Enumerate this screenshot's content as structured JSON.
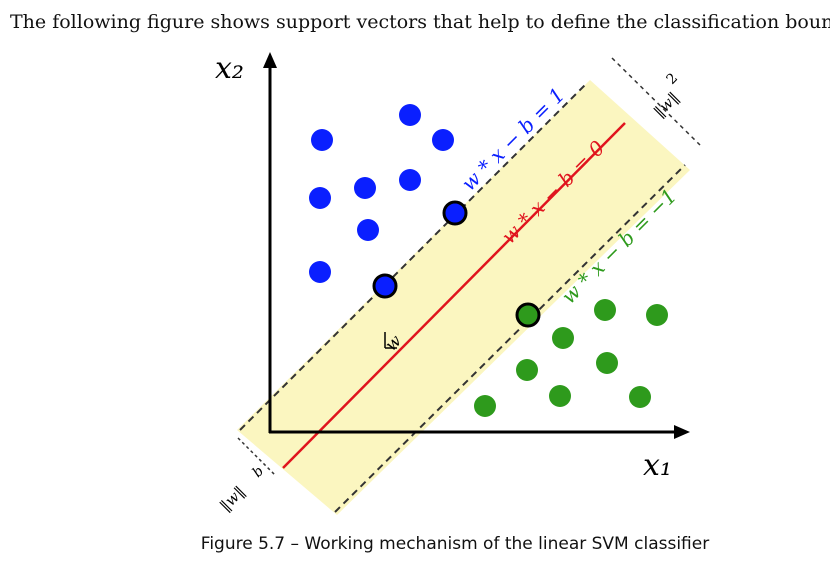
{
  "intro": "The following figure shows support vectors that help to define the classification boundary:",
  "figure": {
    "x1_label": "x₁",
    "x2_label": "x₂",
    "upper_margin_label": "w * x − b = 1",
    "boundary_label": "w * x − b = 0",
    "lower_margin_label": "w * x − b = −1",
    "normal_label": "w",
    "margin_width": {
      "numerator": "2",
      "denominator": "‖w‖"
    },
    "offset": {
      "numerator": "b",
      "denominator": "‖w‖"
    }
  },
  "caption": "Figure 5.7 – Working mechanism of the linear SVM classifier"
}
